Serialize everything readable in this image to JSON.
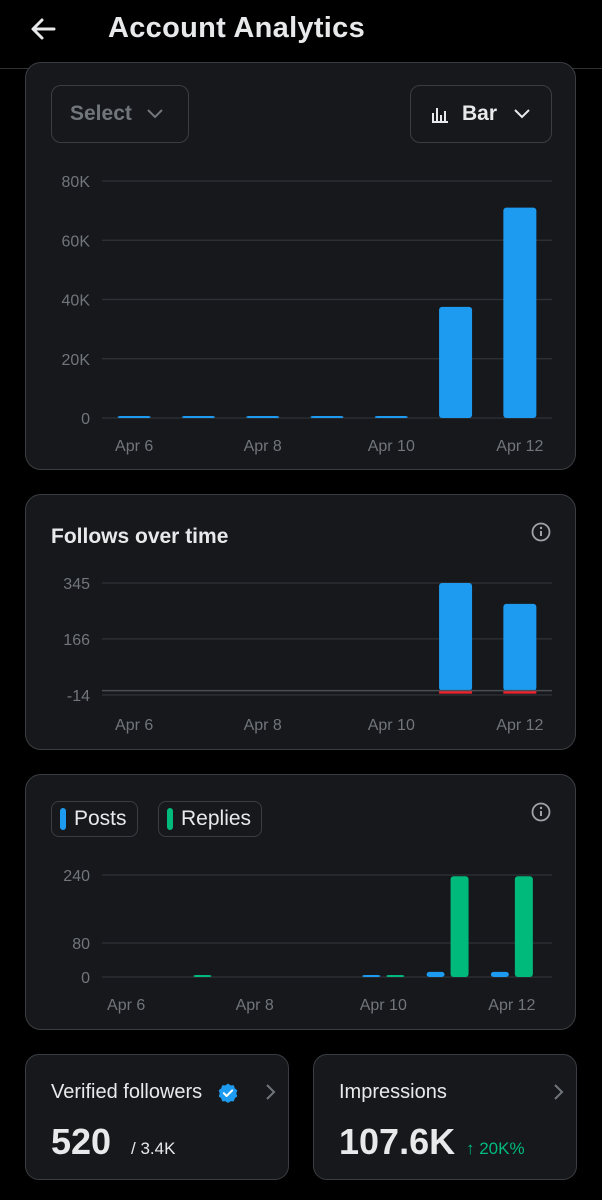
{
  "header": {
    "title": "Account Analytics"
  },
  "controls": {
    "select_label": "Select",
    "chart_type_label": "Bar"
  },
  "colors": {
    "blue": "#1d9bf0",
    "green": "#00ba7c",
    "red": "#f4212e",
    "grid": "#2f3336",
    "tick": "#71767b"
  },
  "chart_data": [
    {
      "type": "bar",
      "title": "",
      "categories": [
        "Apr 6",
        "Apr 7",
        "Apr 8",
        "Apr 9",
        "Apr 10",
        "Apr 11",
        "Apr 12"
      ],
      "x_tick_labels": [
        "Apr 6",
        "Apr 8",
        "Apr 10",
        "Apr 12"
      ],
      "y_tick_labels": [
        "0",
        "20K",
        "40K",
        "60K",
        "80K"
      ],
      "ylim": [
        0,
        80000
      ],
      "values": [
        200,
        200,
        200,
        200,
        400,
        37500,
        71000
      ],
      "grid": true
    },
    {
      "type": "bar",
      "title": "Follows over time",
      "categories": [
        "Apr 6",
        "Apr 7",
        "Apr 8",
        "Apr 9",
        "Apr 10",
        "Apr 11",
        "Apr 12"
      ],
      "x_tick_labels": [
        "Apr 6",
        "Apr 8",
        "Apr 10",
        "Apr 12"
      ],
      "y_tick_labels": [
        "-14",
        "166",
        "345"
      ],
      "ylim": [
        -14,
        345
      ],
      "series": [
        {
          "values": [
            0,
            0,
            0,
            0,
            0,
            345,
            278
          ]
        },
        {
          "values": [
            0,
            0,
            0,
            0,
            0,
            -9,
            -9
          ]
        }
      ],
      "grid": true
    },
    {
      "type": "bar",
      "title": "",
      "categories": [
        "Apr 6",
        "Apr 7",
        "Apr 8",
        "Apr 9",
        "Apr 10",
        "Apr 11",
        "Apr 12"
      ],
      "x_tick_labels": [
        "Apr 6",
        "Apr 8",
        "Apr 10",
        "Apr 12"
      ],
      "y_tick_labels": [
        "0",
        "80",
        "240"
      ],
      "ylim": [
        0,
        240
      ],
      "series": [
        {
          "name": "Posts",
          "values": [
            0,
            0,
            0,
            0,
            3,
            12,
            12
          ]
        },
        {
          "name": "Replies",
          "values": [
            0,
            1,
            0,
            0,
            1,
            237,
            237
          ]
        }
      ],
      "legend": "top-left",
      "grid": true
    }
  ],
  "stats": {
    "verified": {
      "title": "Verified followers",
      "value": "520",
      "sub": "/ 3.4K"
    },
    "impressions": {
      "title": "Impressions",
      "value": "107.6K",
      "change": "↑ 20K%"
    }
  }
}
